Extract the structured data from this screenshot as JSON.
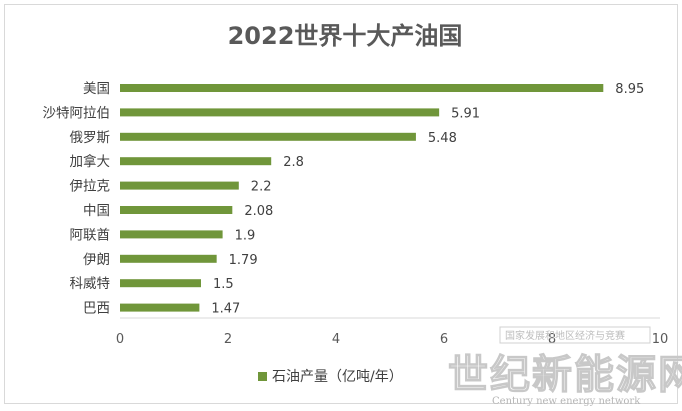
{
  "chart_data": {
    "type": "bar",
    "orientation": "horizontal",
    "title": "2022世界十大产油国",
    "categories": [
      "美国",
      "沙特阿拉伯",
      "俄罗斯",
      "加拿大",
      "伊拉克",
      "中国",
      "阿联酋",
      "伊朗",
      "科威特",
      "巴西"
    ],
    "series": [
      {
        "name": "石油产量（亿吨/年）",
        "values": [
          8.95,
          5.91,
          5.48,
          2.8,
          2.2,
          2.08,
          1.9,
          1.79,
          1.5,
          1.47
        ]
      }
    ],
    "value_labels": [
      "8.95",
      "5.91",
      "5.48",
      "2.8",
      "2.2",
      "2.08",
      "1.9",
      "1.79",
      "1.5",
      "1.47"
    ],
    "xlim": [
      0,
      10
    ],
    "xticks": [
      0,
      2,
      4,
      6,
      8,
      10
    ],
    "xtick_labels": [
      "0",
      "2",
      "4",
      "6",
      "8",
      "10"
    ],
    "grid": false,
    "legend_position": "bottom",
    "bar_color": "#70963a"
  },
  "watermark": {
    "box_text": "国家发展和地区经济与竞赛",
    "cn": "世纪新能源网",
    "en": "Century new energy network"
  }
}
